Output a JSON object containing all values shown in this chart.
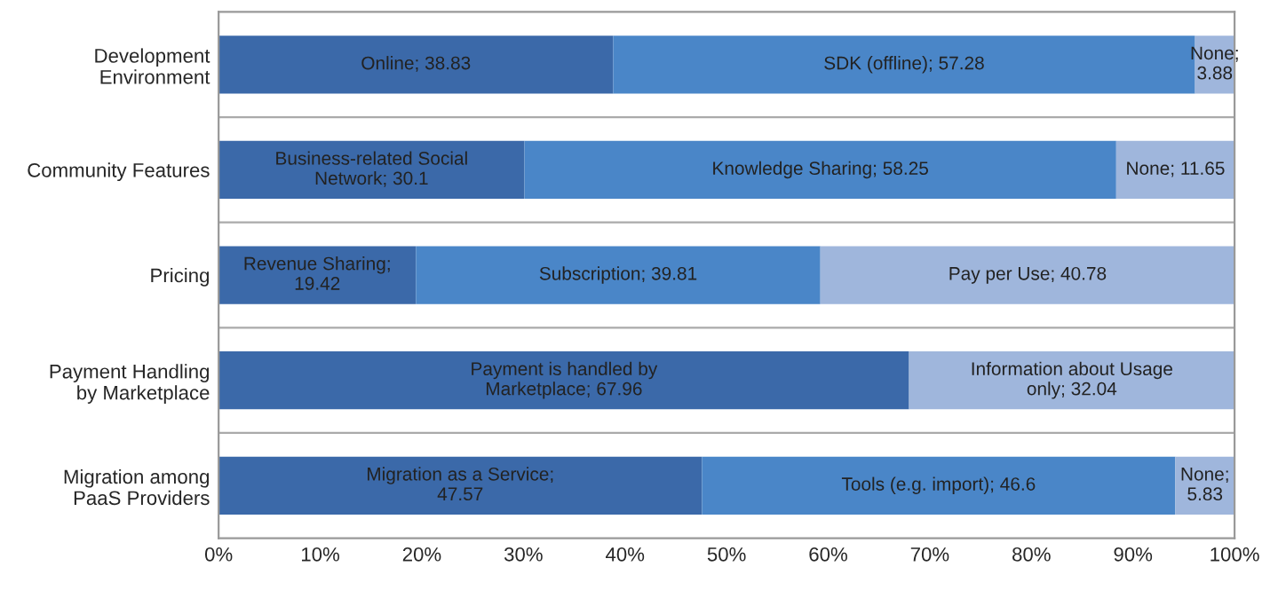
{
  "chart_data": {
    "type": "bar",
    "orientation": "horizontal",
    "stacked": true,
    "categories": [
      "Development\nEnvironment",
      "Community Features",
      "Pricing",
      "Payment Handling\nby Marketplace",
      "Migration among\nPaaS Providers"
    ],
    "series": [
      {
        "colors": [
          "#3b69a9",
          "#3b69a9",
          "#3b69a9",
          "#3b69a9",
          "#3b69a9"
        ],
        "values": [
          38.83,
          30.1,
          19.42,
          67.96,
          47.57
        ],
        "value_labels": [
          "Online; 38.83",
          "Business-related Social\nNetwork; 30.1",
          "Revenue Sharing;\n19.42",
          "Payment is handled by\nMarketplace; 67.96",
          "Migration as a Service;\n47.57"
        ]
      },
      {
        "colors": [
          "#4a86c8",
          "#4a86c8",
          "#4a86c8",
          "#9fb6dc",
          "#4a86c8"
        ],
        "values": [
          57.28,
          58.25,
          39.81,
          32.04,
          46.6
        ],
        "value_labels": [
          "SDK (offline); 57.28",
          "Knowledge Sharing; 58.25",
          "Subscription; 39.81",
          "Information about Usage\nonly; 32.04",
          "Tools (e.g. import); 46.6"
        ]
      },
      {
        "colors": [
          "#9fb6dc",
          "#9fb6dc",
          "#9fb6dc",
          "#9fb6dc",
          "#9fb6dc"
        ],
        "values": [
          3.88,
          11.65,
          40.78,
          null,
          5.83
        ],
        "value_labels": [
          "None;\n3.88",
          "None; 11.65",
          "Pay per Use; 40.78",
          null,
          "None;\n5.83"
        ]
      }
    ],
    "xlim": [
      0,
      100
    ],
    "xticks": [
      {
        "value": 0,
        "label": "0%"
      },
      {
        "value": 10,
        "label": "10%"
      },
      {
        "value": 20,
        "label": "20%"
      },
      {
        "value": 30,
        "label": "30%"
      },
      {
        "value": 40,
        "label": "40%"
      },
      {
        "value": 50,
        "label": "50%"
      },
      {
        "value": 60,
        "label": "60%"
      },
      {
        "value": 70,
        "label": "70%"
      },
      {
        "value": 80,
        "label": "80%"
      },
      {
        "value": 90,
        "label": "90%"
      },
      {
        "value": 100,
        "label": "100%"
      }
    ],
    "grid": false,
    "legend": false
  }
}
